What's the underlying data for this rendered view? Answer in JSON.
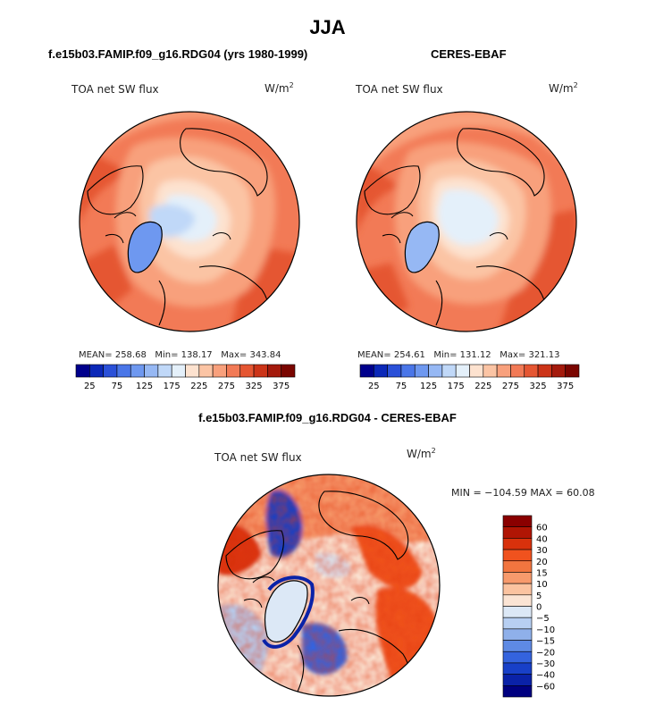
{
  "chart_data": [
    {
      "type": "heatmap",
      "projection": "north-polar-stereographic",
      "title": "f.e15b03.FAMIP.f09_g16.RDG04 (yrs 1980-1999)",
      "variable_label": "TOA net SW flux",
      "units": "W/m",
      "units_exp": "2",
      "stats": {
        "mean": "MEAN= 258.68",
        "min": "Min= 138.17",
        "max": "Max= 343.84"
      },
      "levels": [
        25,
        50,
        75,
        100,
        125,
        150,
        175,
        200,
        225,
        250,
        275,
        300,
        325,
        350,
        375
      ],
      "colorbar_labels": [
        "25",
        "75",
        "125",
        "175",
        "225",
        "275",
        "325",
        "375"
      ]
    },
    {
      "type": "heatmap",
      "projection": "north-polar-stereographic",
      "title": "CERES-EBAF",
      "variable_label": "TOA net SW flux",
      "units": "W/m",
      "units_exp": "2",
      "stats": {
        "mean": "MEAN= 254.61",
        "min": "Min= 131.12",
        "max": "Max= 321.13"
      },
      "levels": [
        25,
        50,
        75,
        100,
        125,
        150,
        175,
        200,
        225,
        250,
        275,
        300,
        325,
        350,
        375
      ],
      "colorbar_labels": [
        "25",
        "75",
        "125",
        "175",
        "225",
        "275",
        "325",
        "375"
      ]
    },
    {
      "type": "heatmap",
      "projection": "north-polar-stereographic",
      "title": "f.e15b03.FAMIP.f09_g16.RDG04 - CERES-EBAF",
      "variable_label": "TOA net SW flux",
      "units": "W/m",
      "units_exp": "2",
      "stats": {
        "text": "MIN = −104.59 MAX =  60.08"
      },
      "levels": [
        60,
        40,
        30,
        20,
        15,
        10,
        5,
        0,
        -5,
        -10,
        -15,
        -20,
        -30,
        -40,
        -60
      ],
      "colorbar_labels": [
        "60",
        "40",
        "30",
        "20",
        "15",
        "10",
        "5",
        "0",
        "−5",
        "−10",
        "−15",
        "−20",
        "−30",
        "−40",
        "−60"
      ]
    }
  ],
  "page_title": "JJA",
  "colors": {
    "sequential": [
      "#00008c",
      "#0b28b8",
      "#2a50d8",
      "#4a76e8",
      "#6e98f0",
      "#96b8f4",
      "#c0d8f8",
      "#e4f0fa",
      "#fde2cf",
      "#fbc4a4",
      "#f8a07c",
      "#f27a56",
      "#e55632",
      "#cc3418",
      "#a41a0c",
      "#7a0500"
    ],
    "diverging_top_to_bottom": [
      "#8a0000",
      "#b01504",
      "#d8310c",
      "#f0521e",
      "#f2753f",
      "#f79a6c",
      "#fbc3a0",
      "#fbe4d4",
      "#dce8f6",
      "#b7cff2",
      "#8fb0ea",
      "#5e8ae4",
      "#3463de",
      "#1840c8",
      "#0a22a8",
      "#000080"
    ]
  }
}
